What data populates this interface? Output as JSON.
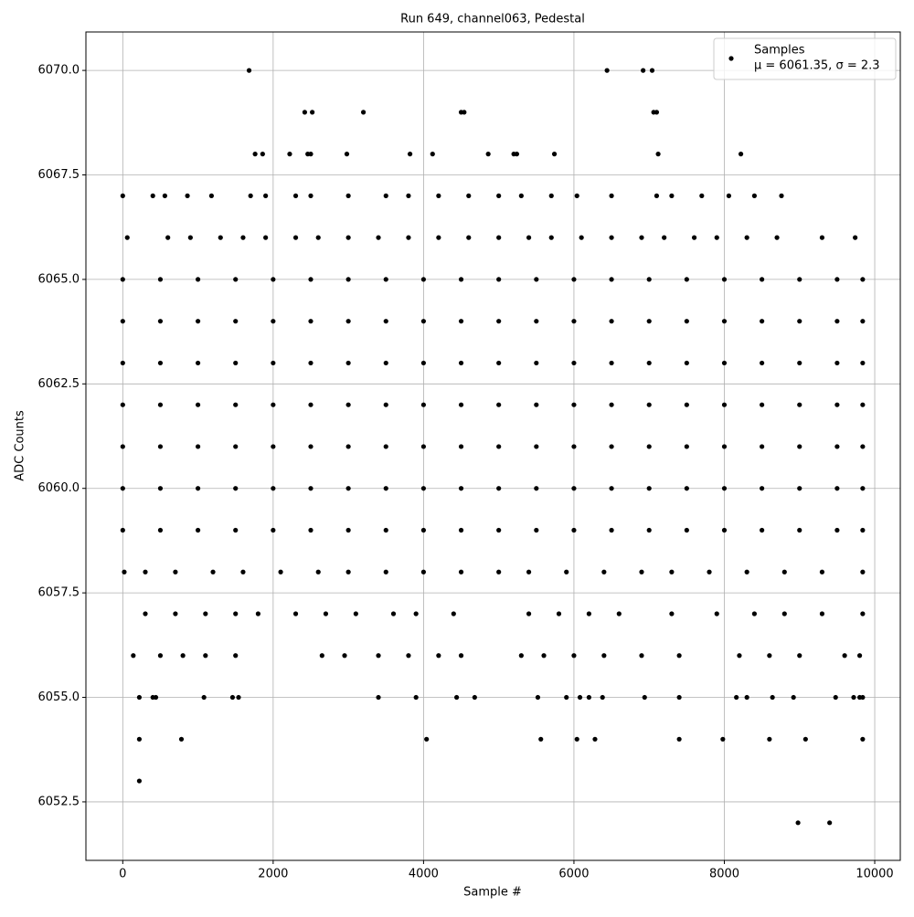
{
  "chart_data": {
    "type": "scatter",
    "title": "Run 649, channel063, Pedestal",
    "x_label": "Sample #",
    "y_label": "ADC Counts",
    "xlim": [
      -490,
      10340
    ],
    "ylim": [
      6051.1,
      6070.92
    ],
    "xticks": [
      0,
      2000,
      4000,
      6000,
      8000,
      10000
    ],
    "yticks": [
      {
        "value": 6052.5,
        "label": "6052.5"
      },
      {
        "value": 6055,
        "label": "6055.0"
      },
      {
        "value": 6057.5,
        "label": "6057.5"
      },
      {
        "value": 6060,
        "label": "6060.0"
      },
      {
        "value": 6062.5,
        "label": "6062.5"
      },
      {
        "value": 6065,
        "label": "6065.0"
      },
      {
        "value": 6067.5,
        "label": "6067.5"
      },
      {
        "value": 6070,
        "label": "6070.0"
      }
    ],
    "grid": true,
    "legend": "upper right",
    "stats_label": "μ = 6061.35, σ = 2.3",
    "series": [
      {
        "name": "Samples",
        "color": "#000000",
        "x": [
          1680,
          6440,
          6920,
          7040,
          2420,
          2520,
          3200,
          4500,
          4540,
          7060,
          7100,
          1760,
          1860,
          2220,
          2460,
          2500,
          2980,
          3820,
          4120,
          4860,
          5200,
          5240,
          5740,
          7120,
          8220,
          0,
          400,
          560,
          860,
          1180,
          1700,
          1900,
          2300,
          2500,
          3000,
          3500,
          3800,
          4200,
          4600,
          5000,
          5300,
          5700,
          6040,
          6500,
          7100,
          7300,
          7700,
          8060,
          8400,
          8760,
          60,
          600,
          900,
          1300,
          1600,
          1900,
          2300,
          2600,
          3000,
          3400,
          3800,
          4200,
          4600,
          5000,
          5400,
          5700,
          6100,
          6500,
          6900,
          7200,
          7600,
          7900,
          8300,
          8700,
          9300,
          9740,
          0,
          500,
          1000,
          1500,
          2000,
          2500,
          3000,
          3500,
          4000,
          4500,
          5000,
          5500,
          6000,
          6500,
          7000,
          7500,
          8000,
          8500,
          9000,
          9500,
          9840,
          0,
          500,
          1000,
          1500,
          2000,
          2500,
          3000,
          3500,
          4000,
          4500,
          5000,
          5500,
          6000,
          6500,
          7000,
          7500,
          8000,
          8500,
          9000,
          9500,
          9840,
          0,
          500,
          1000,
          1500,
          2000,
          2500,
          3000,
          3500,
          4000,
          4500,
          5000,
          5500,
          6000,
          6500,
          7000,
          7500,
          8000,
          8500,
          9000,
          9500,
          9840,
          0,
          500,
          1000,
          1500,
          2000,
          2500,
          3000,
          3500,
          4000,
          4500,
          5000,
          5500,
          6000,
          6500,
          7000,
          7500,
          8000,
          8500,
          9000,
          9500,
          9840,
          0,
          500,
          1000,
          1500,
          2000,
          2500,
          3000,
          3500,
          4000,
          4500,
          5000,
          5500,
          6000,
          6500,
          7000,
          7500,
          8000,
          8500,
          9000,
          9500,
          9840,
          0,
          500,
          1000,
          1500,
          2000,
          2500,
          3000,
          3500,
          4000,
          4500,
          5000,
          5500,
          6000,
          6500,
          7000,
          7500,
          8000,
          8500,
          9000,
          9500,
          9840,
          0,
          500,
          1000,
          1500,
          2000,
          2500,
          3000,
          3500,
          4000,
          4500,
          5000,
          5500,
          6000,
          6500,
          7000,
          7500,
          8000,
          8500,
          9000,
          9500,
          9840,
          20,
          300,
          700,
          1200,
          1600,
          2100,
          2600,
          3000,
          3500,
          4000,
          4500,
          5000,
          5400,
          5900,
          6400,
          6900,
          7300,
          7800,
          8300,
          8800,
          9300,
          9840,
          300,
          700,
          1100,
          1500,
          1800,
          2300,
          2700,
          3100,
          3600,
          3900,
          4400,
          5400,
          5800,
          6200,
          6600,
          7300,
          7900,
          8400,
          8800,
          9300,
          9840,
          140,
          500,
          800,
          1100,
          1500,
          2650,
          2950,
          3400,
          3800,
          4200,
          4500,
          5300,
          5600,
          6000,
          6400,
          6900,
          7400,
          8200,
          8600,
          9000,
          9600,
          9800,
          220,
          400,
          440,
          1080,
          1460,
          1540,
          3400,
          3900,
          4440,
          4680,
          5520,
          5900,
          6080,
          6200,
          6380,
          6940,
          7400,
          8160,
          8300,
          8640,
          8920,
          9480,
          9720,
          9800,
          9840,
          220,
          780,
          4040,
          5560,
          6040,
          6280,
          7400,
          7980,
          8600,
          9080,
          9840,
          220,
          8980,
          9400
        ],
        "values": [
          6070,
          6070,
          6070,
          6070,
          6069,
          6069,
          6069,
          6069,
          6069,
          6069,
          6069,
          6068,
          6068,
          6068,
          6068,
          6068,
          6068,
          6068,
          6068,
          6068,
          6068,
          6068,
          6068,
          6068,
          6068,
          6067,
          6067,
          6067,
          6067,
          6067,
          6067,
          6067,
          6067,
          6067,
          6067,
          6067,
          6067,
          6067,
          6067,
          6067,
          6067,
          6067,
          6067,
          6067,
          6067,
          6067,
          6067,
          6067,
          6067,
          6067,
          6066,
          6066,
          6066,
          6066,
          6066,
          6066,
          6066,
          6066,
          6066,
          6066,
          6066,
          6066,
          6066,
          6066,
          6066,
          6066,
          6066,
          6066,
          6066,
          6066,
          6066,
          6066,
          6066,
          6066,
          6066,
          6066,
          6065,
          6065,
          6065,
          6065,
          6065,
          6065,
          6065,
          6065,
          6065,
          6065,
          6065,
          6065,
          6065,
          6065,
          6065,
          6065,
          6065,
          6065,
          6065,
          6065,
          6065,
          6064,
          6064,
          6064,
          6064,
          6064,
          6064,
          6064,
          6064,
          6064,
          6064,
          6064,
          6064,
          6064,
          6064,
          6064,
          6064,
          6064,
          6064,
          6064,
          6064,
          6064,
          6063,
          6063,
          6063,
          6063,
          6063,
          6063,
          6063,
          6063,
          6063,
          6063,
          6063,
          6063,
          6063,
          6063,
          6063,
          6063,
          6063,
          6063,
          6063,
          6063,
          6063,
          6062,
          6062,
          6062,
          6062,
          6062,
          6062,
          6062,
          6062,
          6062,
          6062,
          6062,
          6062,
          6062,
          6062,
          6062,
          6062,
          6062,
          6062,
          6062,
          6062,
          6062,
          6061,
          6061,
          6061,
          6061,
          6061,
          6061,
          6061,
          6061,
          6061,
          6061,
          6061,
          6061,
          6061,
          6061,
          6061,
          6061,
          6061,
          6061,
          6061,
          6061,
          6061,
          6060,
          6060,
          6060,
          6060,
          6060,
          6060,
          6060,
          6060,
          6060,
          6060,
          6060,
          6060,
          6060,
          6060,
          6060,
          6060,
          6060,
          6060,
          6060,
          6060,
          6060,
          6059,
          6059,
          6059,
          6059,
          6059,
          6059,
          6059,
          6059,
          6059,
          6059,
          6059,
          6059,
          6059,
          6059,
          6059,
          6059,
          6059,
          6059,
          6059,
          6059,
          6059,
          6058,
          6058,
          6058,
          6058,
          6058,
          6058,
          6058,
          6058,
          6058,
          6058,
          6058,
          6058,
          6058,
          6058,
          6058,
          6058,
          6058,
          6058,
          6058,
          6058,
          6058,
          6058,
          6057,
          6057,
          6057,
          6057,
          6057,
          6057,
          6057,
          6057,
          6057,
          6057,
          6057,
          6057,
          6057,
          6057,
          6057,
          6057,
          6057,
          6057,
          6057,
          6057,
          6057,
          6056,
          6056,
          6056,
          6056,
          6056,
          6056,
          6056,
          6056,
          6056,
          6056,
          6056,
          6056,
          6056,
          6056,
          6056,
          6056,
          6056,
          6056,
          6056,
          6056,
          6056,
          6056,
          6055,
          6055,
          6055,
          6055,
          6055,
          6055,
          6055,
          6055,
          6055,
          6055,
          6055,
          6055,
          6055,
          6055,
          6055,
          6055,
          6055,
          6055,
          6055,
          6055,
          6055,
          6055,
          6055,
          6055,
          6055,
          6054,
          6054,
          6054,
          6054,
          6054,
          6054,
          6054,
          6054,
          6054,
          6054,
          6054,
          6053,
          6052,
          6052
        ]
      }
    ]
  }
}
